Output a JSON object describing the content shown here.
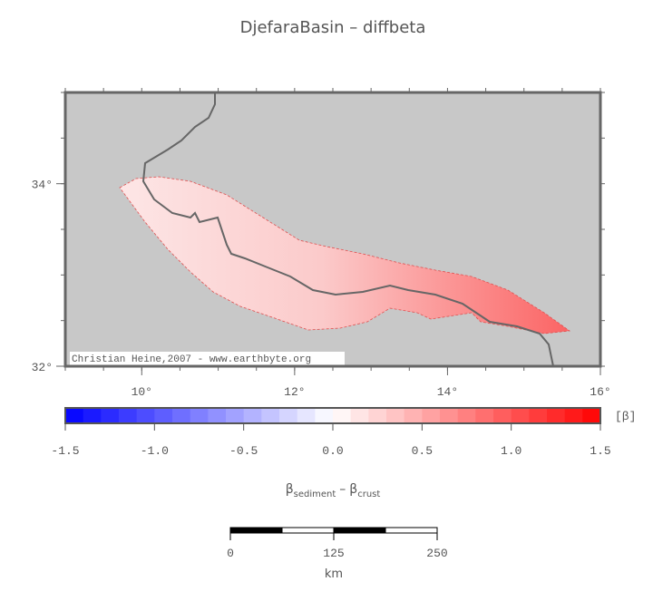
{
  "title": "DjefaraBasin – diffbeta",
  "map": {
    "xlim": [
      9,
      16
    ],
    "ylim": [
      32,
      35
    ],
    "xticks": [
      {
        "value": 10,
        "label": "10°"
      },
      {
        "value": 12,
        "label": "12°"
      },
      {
        "value": 14,
        "label": "14°"
      },
      {
        "value": 16,
        "label": "16°"
      }
    ],
    "yticks": [
      {
        "value": 32,
        "label": "32°"
      },
      {
        "value": 34,
        "label": "34°"
      }
    ],
    "credit": "Christian Heine,2007 - www.earthbyte.org"
  },
  "colorbar": {
    "lim": [
      -1.5,
      1.5
    ],
    "step": 0.1,
    "colors": [
      "#0000ff",
      "#ffffff",
      "#ff0000"
    ],
    "ticks": [
      -1.5,
      {
        "value": -1.0,
        "label": "-1.0"
      },
      -0.5,
      {
        "value": 0,
        "label": "0.0"
      },
      0.5,
      {
        "value": 1.0,
        "label": "1.0"
      },
      1.5
    ],
    "unit": "[β]",
    "label": {
      "symbol1": "β",
      "sub1": "sediment",
      "minus": "–",
      "symbol2": "β",
      "sub2": "crust"
    }
  },
  "scale_bar": {
    "lim": [
      0,
      250
    ],
    "ticks": [
      0,
      125,
      250
    ],
    "unit": "km"
  }
}
